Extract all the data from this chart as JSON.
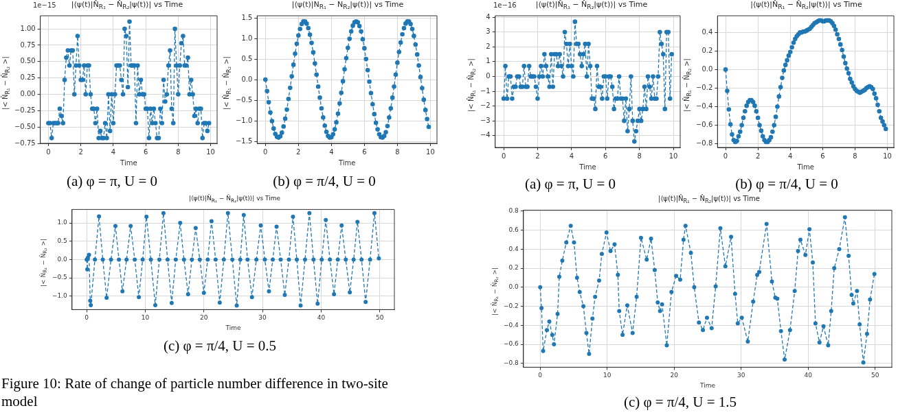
{
  "chart_data": [
    {
      "type": "line",
      "title": "|⟨ψ(t)|N̂$_{R₁}$ − N̂$_{R₂}$|ψ(t)⟩| vs Time",
      "xlabel": "Time",
      "ylabel": "|< N̂$_{R₁}$ − N̂$_{R₂}$ >|",
      "annotations": [
        "1e−15",
        "(a) φ = π, U = 0"
      ],
      "color": "#1f77b4",
      "marker": "circle",
      "line_style": "dashed",
      "grid": true,
      "legend": false,
      "xlim": [
        -0.5,
        10.4
      ],
      "xticks": [
        0,
        2,
        4,
        6,
        8,
        10
      ],
      "ylim": [
        -0.75,
        1.2
      ],
      "yticks": [
        {
          "value": -0.75,
          "label": "−0.75"
        },
        {
          "value": -0.5,
          "label": "−0.50"
        },
        {
          "value": -0.25,
          "label": "−0.25"
        },
        {
          "value": 0,
          "label": "0.00"
        },
        {
          "value": 0.25,
          "label": "0.25"
        },
        {
          "value": 0.5,
          "label": "0.50"
        },
        {
          "value": 0.75,
          "label": "0.75"
        },
        {
          "value": 1,
          "label": "1.00"
        }
      ],
      "x": [
        0,
        0.1,
        0.2,
        0.3,
        0.4,
        0.5,
        0.6,
        0.7,
        0.8,
        0.9,
        1,
        1.1,
        1.2,
        1.3,
        1.4,
        1.5,
        1.6,
        1.7,
        1.8,
        1.9,
        2,
        2.1,
        2.2,
        2.3,
        2.4,
        2.5,
        2.6,
        2.7,
        2.8,
        2.9,
        3,
        3.1,
        3.2,
        3.3,
        3.4,
        3.5,
        3.6,
        3.7,
        3.8,
        3.9,
        4,
        4.1,
        4.2,
        4.3,
        4.4,
        4.5,
        4.6,
        4.7,
        4.8,
        4.9,
        5,
        5.1,
        5.2,
        5.3,
        5.4,
        5.5,
        5.6,
        5.7,
        5.8,
        5.9,
        6,
        6.1,
        6.2,
        6.3,
        6.4,
        6.5,
        6.6,
        6.7,
        6.8,
        6.9,
        7,
        7.1,
        7.2,
        7.3,
        7.4,
        7.5,
        7.6,
        7.7,
        7.8,
        7.9,
        8,
        8.1,
        8.2,
        8.3,
        8.4,
        8.5,
        8.6,
        8.7,
        8.8,
        8.9,
        9,
        9.1,
        9.2,
        9.3,
        9.4,
        9.5,
        9.6,
        9.7,
        9.8,
        9.9
      ],
      "values": [
        -0.44,
        -0.44,
        -0.67,
        -0.44,
        -0.44,
        -0.44,
        -0.44,
        -0.22,
        -0.33,
        -0.44,
        0.22,
        0.56,
        0.67,
        0.44,
        0.67,
        0.67,
        0,
        0.44,
        0.89,
        0.44,
        0.22,
        0.22,
        0.44,
        0,
        0.44,
        0.44,
        0,
        -0.22,
        -0.22,
        -0.44,
        -0.22,
        -0.67,
        -0.56,
        -0.67,
        -0.67,
        -0.44,
        -0.67,
        0,
        -0.56,
        0,
        -0.44,
        0,
        0.44,
        0.44,
        0.44,
        0.22,
        0,
        1,
        0.89,
        0.11,
        1.11,
        0.44,
        0.44,
        0.44,
        -0.44,
        0.44,
        0,
        0.22,
        0,
        0,
        -0.22,
        -0.22,
        -0.67,
        -0.22,
        -0.44,
        -0.22,
        -0.44,
        -0.67,
        -0.67,
        -0.22,
        -0.44,
        0.22,
        -0.11,
        0,
        0.44,
        0.67,
        -0.22,
        -0.44,
        1,
        0.44,
        0,
        0.44,
        0.78,
        0.89,
        0.44,
        0.44,
        0.56,
        0,
        0.22,
        0,
        -0.33,
        -0.22,
        -0.44,
        -0.22,
        -0.22,
        -0.67,
        -0.44,
        -0.44,
        -0.56,
        -0.44
      ]
    },
    {
      "type": "line",
      "title": "|⟨ψ(t)|N$_{R₁}$ − N$_{R₂}$|ψ(t)⟩| vs Time",
      "xlabel": "Time",
      "ylabel": "|< N̂$_{R₁}$ − N̂$_{R₂}$ >|",
      "annotations": [
        "(b) φ = π/4, U = 0"
      ],
      "color": "#1f77b4",
      "marker": "circle",
      "line_style": "dashed",
      "grid": true,
      "legend": false,
      "xlim": [
        -0.5,
        10.4
      ],
      "xticks": [
        0,
        2,
        4,
        6,
        8,
        10
      ],
      "ylim": [
        -1.55,
        1.55
      ],
      "yticks": [
        {
          "value": -1.5,
          "label": "−1.5"
        },
        {
          "value": -1,
          "label": "−1.0"
        },
        {
          "value": -0.5,
          "label": "−0.5"
        },
        {
          "value": 0,
          "label": "0.0"
        },
        {
          "value": 0.5,
          "label": "0.5"
        },
        {
          "value": 1,
          "label": "1.0"
        },
        {
          "value": 1.5,
          "label": "1.5"
        }
      ],
      "x": [
        0,
        0.1,
        0.2,
        0.3,
        0.4,
        0.5,
        0.6,
        0.7,
        0.8,
        0.9,
        1,
        1.1,
        1.2,
        1.3,
        1.4,
        1.5,
        1.6,
        1.7,
        1.8,
        1.9,
        2,
        2.1,
        2.2,
        2.3,
        2.4,
        2.5,
        2.6,
        2.7,
        2.8,
        2.9,
        3,
        3.1,
        3.2,
        3.3,
        3.4,
        3.5,
        3.6,
        3.7,
        3.8,
        3.9,
        4,
        4.1,
        4.2,
        4.3,
        4.4,
        4.5,
        4.6,
        4.7,
        4.8,
        4.9,
        5,
        5.1,
        5.2,
        5.3,
        5.4,
        5.5,
        5.6,
        5.7,
        5.8,
        5.9,
        6,
        6.1,
        6.2,
        6.3,
        6.4,
        6.5,
        6.6,
        6.7,
        6.8,
        6.9,
        7,
        7.1,
        7.2,
        7.3,
        7.4,
        7.5,
        7.6,
        7.7,
        7.8,
        7.9,
        8,
        8.1,
        8.2,
        8.3,
        8.4,
        8.5,
        8.6,
        8.7,
        8.8,
        8.9,
        9,
        9.1,
        9.2,
        9.3,
        9.4,
        9.5,
        9.6,
        9.7,
        9.8,
        9.9
      ],
      "values": [
        0,
        -0.28,
        -0.55,
        -0.8,
        -1.01,
        -1.19,
        -1.32,
        -1.39,
        -1.41,
        -1.38,
        -1.29,
        -1.14,
        -0.95,
        -0.73,
        -0.47,
        -0.2,
        0.08,
        0.36,
        0.63,
        0.87,
        1.07,
        1.23,
        1.35,
        1.41,
        1.41,
        1.36,
        1.25,
        1.09,
        0.89,
        0.66,
        0.39,
        0.12,
        -0.17,
        -0.44,
        -0.7,
        -0.92,
        -1.12,
        -1.27,
        -1.37,
        -1.41,
        -1.4,
        -1.33,
        -1.21,
        -1.04,
        -0.83,
        -0.58,
        -0.32,
        -0.04,
        0.25,
        0.52,
        0.77,
        0.99,
        1.17,
        1.31,
        1.39,
        1.41,
        1.39,
        1.3,
        1.17,
        0.98,
        0.76,
        0.5,
        0.23,
        -0.05,
        -0.33,
        -0.6,
        -0.84,
        -1.05,
        -1.21,
        -1.33,
        -1.4,
        -1.41,
        -1.37,
        -1.28,
        -1.13,
        -0.92,
        -0.7,
        -0.44,
        -0.17,
        0.12,
        0.41,
        0.67,
        0.9,
        1.1,
        1.25,
        1.36,
        1.41,
        1.41,
        1.35,
        1.23,
        1.06,
        0.85,
        0.61,
        0.34,
        0.06,
        -0.21,
        -0.49,
        -0.74,
        -0.96,
        -1.15
      ]
    },
    {
      "type": "line",
      "title": "|⟨ψ(t)|N̂$_{R₁}$ − N̂$_{R₂}$|ψ(t)⟩| vs Time",
      "xlabel": "Time",
      "ylabel": "|< N̂$_{R₁}$ − N̂$_{R₂}$ >|",
      "annotations": [
        "1e−16",
        "(a) φ = π, U = 0"
      ],
      "color": "#1f77b4",
      "marker": "circle",
      "line_style": "dashed",
      "grid": true,
      "legend": false,
      "xlim": [
        -0.5,
        10.4
      ],
      "xticks": [
        0,
        2,
        4,
        6,
        8,
        10
      ],
      "ylim": [
        -4.8,
        4.1
      ],
      "yticks": [
        {
          "value": -4,
          "label": "−4"
        },
        {
          "value": -3,
          "label": "−3"
        },
        {
          "value": -2,
          "label": "−2"
        },
        {
          "value": -1,
          "label": "−1"
        },
        0,
        1,
        2,
        3,
        4
      ],
      "x": [
        0,
        0.1,
        0.2,
        0.3,
        0.4,
        0.5,
        0.6,
        0.7,
        0.8,
        0.9,
        1,
        1.1,
        1.2,
        1.3,
        1.4,
        1.5,
        1.6,
        1.7,
        1.8,
        1.9,
        2,
        2.1,
        2.2,
        2.3,
        2.4,
        2.5,
        2.6,
        2.7,
        2.8,
        2.9,
        3,
        3.1,
        3.2,
        3.3,
        3.4,
        3.5,
        3.6,
        3.7,
        3.8,
        3.9,
        4,
        4.1,
        4.2,
        4.3,
        4.4,
        4.5,
        4.6,
        4.7,
        4.8,
        4.9,
        5,
        5.1,
        5.2,
        5.3,
        5.4,
        5.5,
        5.6,
        5.7,
        5.8,
        5.9,
        6,
        6.1,
        6.2,
        6.3,
        6.4,
        6.5,
        6.6,
        6.7,
        6.8,
        6.9,
        7,
        7.1,
        7.2,
        7.3,
        7.4,
        7.5,
        7.6,
        7.7,
        7.8,
        7.9,
        8,
        8.1,
        8.2,
        8.3,
        8.4,
        8.5,
        8.6,
        8.7,
        8.8,
        8.9,
        9,
        9.1,
        9.2,
        9.3,
        9.4,
        9.5,
        9.6,
        9.7,
        9.8,
        9.9
      ],
      "values": [
        -1.5,
        0.7,
        -1.5,
        0,
        0,
        -1.5,
        -0.7,
        -0.7,
        0,
        0,
        -0.7,
        -0.7,
        0.7,
        -0.7,
        -0.7,
        0.7,
        0,
        0,
        0,
        -0.7,
        -1.5,
        0,
        0.7,
        0,
        1.5,
        0.7,
        0,
        -0.7,
        1.5,
        -0.7,
        1.5,
        1.5,
        0.7,
        1.5,
        0.7,
        0,
        3,
        2.2,
        0.7,
        2.2,
        0.7,
        0,
        3.7,
        2.2,
        2.2,
        1.5,
        0.7,
        1.5,
        2.2,
        0,
        2.2,
        0.7,
        -1.5,
        -1.5,
        -2.2,
        0.7,
        -0.7,
        -0.7,
        -1.5,
        0,
        0,
        -1.5,
        0,
        0,
        -0.7,
        -2.2,
        -1.5,
        -1.5,
        0,
        -1.5,
        -1.5,
        -3,
        -1.5,
        -3.7,
        -2.2,
        0,
        -3,
        -4.4,
        -3.7,
        -3,
        -2.2,
        -3,
        -2.2,
        -0.7,
        -2.2,
        0,
        -0.7,
        -1.5,
        0,
        -1.5,
        -1.5,
        0,
        3,
        2.2,
        1.5,
        -2.2,
        3,
        3,
        -1.5,
        1.5
      ]
    },
    {
      "type": "line",
      "title": "|⟨ψ(t)|N̂$_{R₁}$ − N̂$_{R₂}$|ψ(t)⟩| vs Time",
      "xlabel": "Time",
      "ylabel": "|< N̂$_{R₁}$ − N̂$_{R₂}$ >|",
      "annotations": [
        "(b) φ = π/4, U = 0"
      ],
      "color": "#1f77b4",
      "marker": "circle",
      "line_style": "dashed",
      "grid": true,
      "legend": false,
      "xlim": [
        -0.5,
        10.4
      ],
      "xticks": [
        0,
        2,
        4,
        6,
        8,
        10
      ],
      "ylim": [
        -0.84,
        0.58
      ],
      "yticks": [
        {
          "value": -0.8,
          "label": "−0.8"
        },
        {
          "value": -0.6,
          "label": "−0.6"
        },
        {
          "value": -0.4,
          "label": "−0.4"
        },
        {
          "value": -0.2,
          "label": "−0.2"
        },
        {
          "value": 0,
          "label": "0.0"
        },
        {
          "value": 0.2,
          "label": "0.2"
        },
        {
          "value": 0.4,
          "label": "0.4"
        }
      ],
      "x": [
        0,
        0.1,
        0.2,
        0.3,
        0.4,
        0.5,
        0.6,
        0.7,
        0.8,
        0.9,
        1,
        1.1,
        1.2,
        1.3,
        1.4,
        1.5,
        1.6,
        1.7,
        1.8,
        1.9,
        2,
        2.1,
        2.2,
        2.3,
        2.4,
        2.5,
        2.6,
        2.7,
        2.8,
        2.9,
        3,
        3.1,
        3.2,
        3.3,
        3.4,
        3.5,
        3.6,
        3.7,
        3.8,
        3.9,
        4,
        4.1,
        4.2,
        4.3,
        4.4,
        4.5,
        4.6,
        4.7,
        4.8,
        4.9,
        5,
        5.1,
        5.2,
        5.3,
        5.4,
        5.5,
        5.6,
        5.7,
        5.8,
        5.9,
        6,
        6.1,
        6.2,
        6.3,
        6.4,
        6.5,
        6.6,
        6.7,
        6.8,
        6.9,
        7,
        7.1,
        7.2,
        7.3,
        7.4,
        7.5,
        7.6,
        7.7,
        7.8,
        7.9,
        8,
        8.1,
        8.2,
        8.3,
        8.4,
        8.5,
        8.6,
        8.7,
        8.8,
        8.9,
        9,
        9.1,
        9.2,
        9.3,
        9.4,
        9.5,
        9.6,
        9.7,
        9.8,
        9.9
      ],
      "values": [
        0,
        -0.23,
        -0.43,
        -0.59,
        -0.7,
        -0.76,
        -0.78,
        -0.77,
        -0.72,
        -0.67,
        -0.6,
        -0.52,
        -0.45,
        -0.39,
        -0.35,
        -0.33,
        -0.33,
        -0.35,
        -0.39,
        -0.45,
        -0.52,
        -0.6,
        -0.66,
        -0.72,
        -0.76,
        -0.78,
        -0.78,
        -0.76,
        -0.73,
        -0.67,
        -0.6,
        -0.51,
        -0.4,
        -0.29,
        -0.19,
        -0.09,
        -0.01,
        0.05,
        0.1,
        0.15,
        0.19,
        0.24,
        0.29,
        0.33,
        0.36,
        0.38,
        0.4,
        0.4,
        0.41,
        0.41,
        0.42,
        0.43,
        0.44,
        0.46,
        0.48,
        0.5,
        0.51,
        0.52,
        0.53,
        0.53,
        0.52,
        0.52,
        0.53,
        0.53,
        0.53,
        0.52,
        0.5,
        0.47,
        0.43,
        0.38,
        0.33,
        0.27,
        0.21,
        0.14,
        0.07,
        0.01,
        -0.04,
        -0.1,
        -0.14,
        -0.18,
        -0.21,
        -0.23,
        -0.24,
        -0.25,
        -0.24,
        -0.23,
        -0.22,
        -0.2,
        -0.19,
        -0.18,
        -0.19,
        -0.21,
        -0.26,
        -0.31,
        -0.38,
        -0.45,
        -0.52,
        -0.56,
        -0.6,
        -0.64
      ]
    },
    {
      "type": "line",
      "title": "|⟨ψ(t)|N̂$_{R₁}$ − N̂$_{R₂}$|ψ(t)⟩| vs Time",
      "xlabel": "Time",
      "ylabel": "|< N̂$_{R₁}$ − N̂$_{R₂}$ >|",
      "annotations": [
        "(c) φ = π/4, U = 0.5",
        "Figure 10: Rate of change of particle number difference in two-site model"
      ],
      "color": "#1f77b4",
      "marker": "circle",
      "line_style": "dashed",
      "grid": true,
      "legend": false,
      "xlim": [
        -2.5,
        52.5
      ],
      "xticks": [
        0,
        10,
        20,
        30,
        40,
        50
      ],
      "ylim": [
        -1.37,
        1.37
      ],
      "yticks": [
        {
          "value": -1,
          "label": "−1.0"
        },
        {
          "value": -0.5,
          "label": "−0.5"
        },
        {
          "value": 0,
          "label": "0.0"
        },
        {
          "value": 0.5,
          "label": "0.5"
        },
        {
          "value": 1,
          "label": "1.0"
        }
      ],
      "x": [
        0,
        0.1,
        0.2,
        0.4,
        0.6,
        0.7,
        1.4,
        2.1,
        2.75,
        3.4,
        4.15,
        4.9,
        5.5,
        6.1,
        6.8,
        7.5,
        8.2,
        8.9,
        9.55,
        10.2,
        10.95,
        11.7,
        12.4,
        13.1,
        13.8,
        14.5,
        15.2,
        15.95,
        16.6,
        17.3,
        17.95,
        18.6,
        19.3,
        20,
        20.65,
        21.3,
        22,
        22.7,
        23.4,
        24.1,
        24.85,
        25.6,
        26.2,
        26.8,
        27.45,
        28.2,
        28.95,
        29.7,
        30.4,
        31.1,
        31.75,
        32.4,
        33.1,
        33.8,
        34.5,
        35.2,
        35.85,
        36.5,
        37.25,
        38,
        38.7,
        39.4,
        40.1,
        40.8,
        41.5,
        42.2,
        42.85,
        43.5,
        44.2,
        44.9,
        45.55,
        46.2,
        46.9,
        47.6,
        48.35,
        49.1,
        49.85
      ],
      "values": [
        0,
        -0.27,
        0.05,
        0.13,
        -1.13,
        -1.25,
        0,
        1.18,
        0,
        -1.05,
        0,
        0.92,
        0,
        -0.87,
        0,
        0.92,
        0,
        -1.03,
        0,
        1.17,
        0,
        -1.25,
        0,
        1.27,
        0,
        -1.19,
        0,
        1,
        0,
        -0.95,
        0,
        0.86,
        0,
        -0.91,
        0,
        1.05,
        0,
        -1.18,
        0,
        1.27,
        0,
        -1.26,
        0,
        1.22,
        0,
        -1.03,
        0,
        0.93,
        0,
        -0.87,
        0,
        0.9,
        0,
        -0.97,
        0,
        1.17,
        0,
        -1.26,
        0,
        1.27,
        0,
        -1.21,
        0,
        1.08,
        0,
        -0.95,
        0,
        0.93,
        0,
        -0.9,
        0,
        1.03,
        0,
        -1.16,
        0,
        1.27,
        0.03
      ]
    },
    {
      "type": "line",
      "title": "|⟨ψ(t)|N̂$_{R₁}$ − N̂$_{R₂}$|ψ(t)⟩| vs Time",
      "xlabel": "Time",
      "ylabel": "|< N̂$_{R₁}$ − N̂$_{R₂}$ >|",
      "annotations": [
        "(c) φ = π/4, U = 1.5"
      ],
      "color": "#1f77b4",
      "marker": "circle",
      "line_style": "dashed",
      "grid": true,
      "legend": false,
      "xlim": [
        -2.5,
        52.5
      ],
      "xticks": [
        0,
        10,
        20,
        30,
        40,
        50
      ],
      "ylim": [
        -0.84,
        0.81
      ],
      "yticks": [
        {
          "value": -0.8,
          "label": "−0.8"
        },
        {
          "value": -0.6,
          "label": "−0.6"
        },
        {
          "value": -0.4,
          "label": "−0.4"
        },
        {
          "value": -0.2,
          "label": "−0.2"
        },
        {
          "value": 0,
          "label": "0.0"
        },
        {
          "value": 0.2,
          "label": "0.2"
        },
        {
          "value": 0.4,
          "label": "0.4"
        },
        {
          "value": 0.6,
          "label": "0.6"
        },
        {
          "value": 0.8,
          "label": "0.8"
        }
      ],
      "x": [
        0,
        0.2,
        0.44,
        1,
        1.36,
        1.8,
        2.06,
        2.6,
        2.85,
        3.3,
        3.9,
        4.56,
        5.05,
        5.5,
        5.9,
        6.45,
        6.9,
        7.3,
        7.8,
        8.2,
        8.8,
        9.2,
        9.9,
        10.5,
        11.1,
        11.6,
        11.8,
        12.3,
        13,
        13.8,
        14.4,
        15.05,
        15.9,
        16.55,
        17.1,
        17.55,
        17.9,
        18.2,
        18.9,
        19.6,
        20.3,
        20.9,
        21.4,
        21.7,
        22.5,
        23,
        23.7,
        24.3,
        24.9,
        25.6,
        26.2,
        26.9,
        27.65,
        28.5,
        29.1,
        29.5,
        30.1,
        31,
        31.8,
        32.4,
        32.7,
        33.8,
        34.6,
        35.1,
        35.4,
        35.95,
        36.5,
        37.3,
        38,
        38.5,
        38.85,
        39.6,
        40.2,
        40.7,
        41.1,
        41.7,
        42.3,
        43,
        43.45,
        43.9,
        44.65,
        45.5,
        46.05,
        46.5,
        46.75,
        47.3,
        47.7,
        48.25,
        48.8,
        49.25,
        49.9
      ],
      "values": [
        0,
        -0.22,
        -0.67,
        -0.45,
        -0.36,
        -0.5,
        -0.6,
        -0.28,
        0.11,
        0.28,
        0.47,
        0.645,
        0.47,
        0.1,
        -0.05,
        -0.2,
        -0.48,
        -0.7,
        -0.33,
        -0.1,
        0.07,
        0.35,
        0.575,
        0.38,
        0.45,
        0.13,
        -0.25,
        -0.5,
        -0.19,
        -0.48,
        -0.1,
        0.52,
        0.29,
        0.51,
        0.18,
        -0.16,
        -0.25,
        -0.18,
        -0.61,
        -0.05,
        0.12,
        0.08,
        0.5,
        0.645,
        0.36,
        0,
        -0.37,
        -0.45,
        -0.32,
        -0.43,
        0.01,
        0.62,
        0.22,
        0.53,
        -0.07,
        -0.38,
        -0.32,
        -0.57,
        -0.15,
        0.13,
        0.16,
        0.665,
        0.06,
        -0.11,
        -0.12,
        -0.46,
        -0.76,
        -0.45,
        -0.04,
        0.38,
        0.5,
        0.34,
        0.61,
        0.26,
        -0.38,
        -0.58,
        -0.41,
        -0.61,
        -0.25,
        0.2,
        0.4,
        0.735,
        0.33,
        -0.08,
        -0.17,
        -0.04,
        -0.39,
        -0.79,
        -0.49,
        -0.13,
        0.14
      ]
    }
  ]
}
